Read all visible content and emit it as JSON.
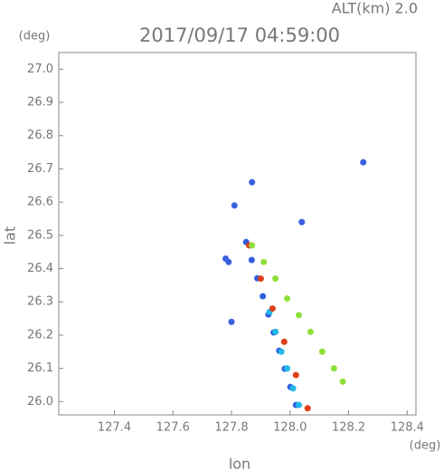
{
  "chart_data": {
    "type": "scatter",
    "title": "2017/09/17 04:59:00",
    "subtitle": "ALT(km) 2.0",
    "x_label": "lon",
    "y_label": "lat",
    "x_unit": "(deg)",
    "y_unit": "(deg)",
    "xlim": [
      127.21,
      128.43
    ],
    "ylim": [
      25.96,
      27.05
    ],
    "xticks": [
      127.4,
      127.6,
      127.8,
      {
        "value": 128,
        "label": "128.0"
      },
      128.2,
      128.4
    ],
    "yticks": [
      {
        "value": 26,
        "label": "26.0"
      },
      26.1,
      26.2,
      26.3,
      26.4,
      26.5,
      26.6,
      26.7,
      26.8,
      26.9,
      {
        "value": 27,
        "label": "27.0"
      }
    ],
    "series": [
      {
        "color": "#2f5fe0",
        "x": [
          127.85,
          127.869,
          127.888,
          127.907,
          127.926,
          127.944,
          127.963,
          127.982,
          128.001,
          128.02
        ],
        "y": [
          26.48,
          26.426,
          26.371,
          26.317,
          26.262,
          26.208,
          26.153,
          26.099,
          26.044,
          25.99
        ]
      },
      {
        "color": "#22b8e8",
        "x": [
          127.93,
          127.95,
          127.97,
          127.99,
          128.01,
          128.03
        ],
        "y": [
          26.27,
          26.21,
          26.15,
          26.1,
          26.04,
          25.99
        ]
      },
      {
        "color": "#e0401a",
        "x": [
          127.86,
          127.9,
          127.94,
          127.98,
          128.02,
          128.06
        ],
        "y": [
          26.47,
          26.37,
          26.28,
          26.18,
          26.08,
          25.98
        ]
      },
      {
        "color": "#8ee03a",
        "x": [
          127.87,
          127.91,
          127.95,
          127.99,
          128.03,
          128.07,
          128.11,
          128.15,
          128.18
        ],
        "y": [
          26.47,
          26.42,
          26.37,
          26.31,
          26.26,
          26.21,
          26.15,
          26.1,
          26.06
        ]
      },
      {
        "color": "#3a5fe0",
        "x": [
          128.25,
          127.81,
          128.04,
          127.8,
          127.87,
          127.78,
          127.79
        ],
        "y": [
          26.72,
          26.59,
          26.54,
          26.24,
          26.66,
          26.43,
          26.42
        ]
      }
    ]
  }
}
